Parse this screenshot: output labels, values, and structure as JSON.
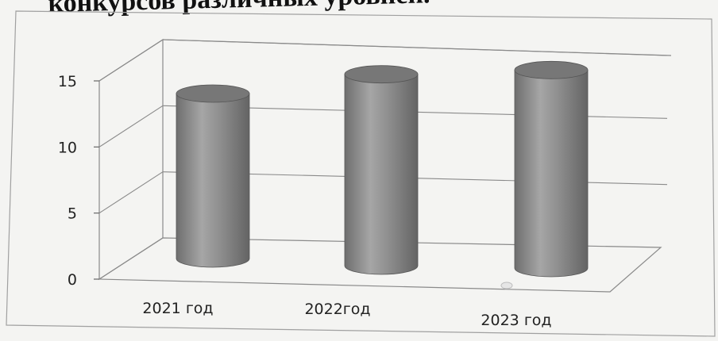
{
  "heading": "конкурсов различных уровней.",
  "chart_data": {
    "type": "bar",
    "categories": [
      "2021 год",
      "2022год",
      "2023 год"
    ],
    "series": [
      {
        "values": [
          12,
          14,
          14.5
        ]
      }
    ],
    "ylim": [
      0,
      15
    ],
    "yticks": [
      "0",
      "5",
      "10",
      "15"
    ],
    "grid": true,
    "bar_shape": "cylinder",
    "colors": {
      "bar": "#8c8c8c",
      "bar_top": "#777777",
      "grid": "#8a8a8a",
      "frame": "#9a9a9a"
    }
  }
}
